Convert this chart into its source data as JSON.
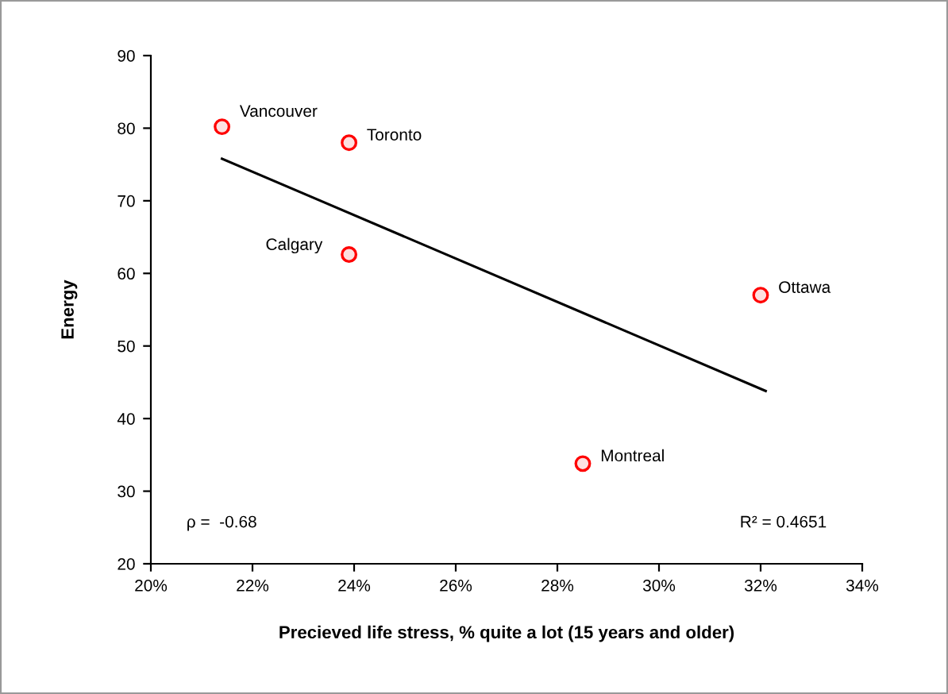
{
  "chart_data": {
    "type": "scatter",
    "xlabel": "Precieved life stress, % quite a lot (15 years and older)",
    "ylabel": "Energy",
    "series": [
      {
        "color": "#ff0000",
        "x": [
          21.4,
          23.9,
          23.9,
          32.0,
          28.5
        ],
        "values": [
          80.2,
          78.0,
          62.6,
          57.0,
          33.8
        ],
        "marker": "circle"
      },
      {
        "type": "line",
        "color": "#000000",
        "x": [
          21.4,
          32.1
        ],
        "values": [
          75.8,
          43.8
        ],
        "marker": "none",
        "line_style": "solid"
      }
    ],
    "annotations": [
      {
        "text": "Vancouver",
        "x": 21.4,
        "y": 80.2
      },
      {
        "text": "Toronto",
        "x": 23.9,
        "y": 78.0
      },
      {
        "text": "Calgary",
        "x": 23.9,
        "y": 62.6
      },
      {
        "text": "Ottawa",
        "x": 32.0,
        "y": 57.0
      },
      {
        "text": "Montreal",
        "x": 28.5,
        "y": 33.8
      },
      "ρ =  -0.68",
      "R² = 0.4651"
    ],
    "xlim": [
      20,
      34
    ],
    "xticks": [
      {
        "value": 20,
        "label": "20%"
      },
      {
        "value": 22,
        "label": "22%"
      },
      {
        "value": 24,
        "label": "24%"
      },
      {
        "value": 26,
        "label": "26%"
      },
      {
        "value": 28,
        "label": "28%"
      },
      {
        "value": 30,
        "label": "30%"
      },
      {
        "value": 32,
        "label": "32%"
      },
      {
        "value": 34,
        "label": "34%"
      }
    ],
    "ylim": [
      20,
      90
    ],
    "yticks": [
      20,
      30,
      40,
      50,
      60,
      70,
      80,
      90
    ],
    "grid": false
  }
}
